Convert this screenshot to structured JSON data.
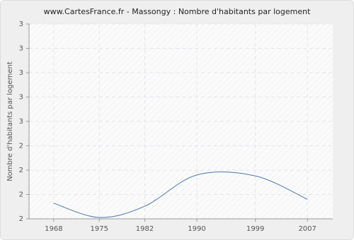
{
  "chart_data": {
    "type": "line",
    "title": "www.CartesFrance.fr - Massongy : Nombre d'habitants par logement",
    "y_label": "Nombre d'habitants par logement",
    "x": [
      1968,
      1975,
      1982,
      1990,
      1999,
      2007
    ],
    "series": [
      {
        "name": "Massongy",
        "color": "#4a77a8",
        "values": [
          2.08,
          2.007,
          2.065,
          2.225,
          2.22,
          2.1
        ]
      }
    ],
    "xlim": [
      1964.2,
      2010.9
    ],
    "xticks": [
      1968,
      1975,
      1982,
      1990,
      1999,
      2007
    ],
    "ylim": [
      2,
      3
    ],
    "yticks": [
      {
        "value": 2,
        "label": "2"
      },
      {
        "value": 2.125,
        "label": "2"
      },
      {
        "value": 2.25,
        "label": "2"
      },
      {
        "value": 2.375,
        "label": "2"
      },
      {
        "value": 2.5,
        "label": "3"
      },
      {
        "value": 2.625,
        "label": "3"
      },
      {
        "value": 2.75,
        "label": "3"
      },
      {
        "value": 2.875,
        "label": "3"
      },
      {
        "value": 3,
        "label": "3"
      }
    ],
    "grid": true
  }
}
